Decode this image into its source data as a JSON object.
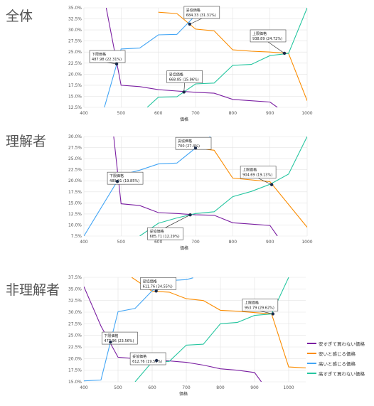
{
  "colors": {
    "too_cheap_doubt": "#7B1FA2",
    "cheap": "#FB8C00",
    "expensive": "#42A5F5",
    "too_expensive": "#26C6A0"
  },
  "legend": [
    {
      "label": "安すぎて買わない価格",
      "color": "#7B1FA2"
    },
    {
      "label": "安いと感じる価格",
      "color": "#FB8C00"
    },
    {
      "label": "高いと感じる価格",
      "color": "#42A5F5"
    },
    {
      "label": "高すぎて買わない価格",
      "color": "#26C6A0"
    }
  ],
  "chart_data": [
    {
      "type": "line",
      "panel_label": "全体",
      "xlabel": "価格",
      "xlim": [
        400,
        1000
      ],
      "ylim": [
        12.5,
        35.0
      ],
      "xticks": [
        400,
        500,
        600,
        700,
        800,
        900,
        1000
      ],
      "xtick_labels": [
        "400",
        "500",
        "600",
        "700",
        "800",
        "900",
        "1000"
      ],
      "yticks": [
        12.5,
        15.0,
        17.5,
        20.0,
        22.5,
        25.0,
        27.5,
        30.0,
        32.5,
        35.0
      ],
      "ytick_labels": [
        "12.5%",
        "15.0%",
        "17.5%",
        "20.0%",
        "22.5%",
        "25.0%",
        "27.5%",
        "30.0%",
        "32.5%",
        "35.0%"
      ],
      "series": [
        {
          "key": "too_cheap_doubt",
          "x": [
            460,
            500,
            550,
            600,
            650,
            700,
            750,
            800,
            850,
            900,
            920
          ],
          "y": [
            35.0,
            17.5,
            17.2,
            16.5,
            16.2,
            15.9,
            15.7,
            14.3,
            14.0,
            13.7,
            12.5
          ]
        },
        {
          "key": "cheap",
          "x": [
            600,
            650,
            700,
            750,
            800,
            850,
            900,
            950,
            1000
          ],
          "y": [
            34.0,
            33.7,
            30.2,
            29.8,
            25.5,
            25.2,
            25.0,
            24.7,
            14.0
          ]
        },
        {
          "key": "expensive",
          "x": [
            455,
            500,
            550,
            600,
            650,
            700,
            750
          ],
          "y": [
            12.5,
            25.7,
            25.9,
            28.9,
            29.0,
            33.3,
            35.0
          ]
        },
        {
          "key": "too_expensive",
          "x": [
            570,
            600,
            650,
            700,
            750,
            800,
            850,
            900,
            950,
            1000
          ],
          "y": [
            12.5,
            14.8,
            14.9,
            17.8,
            18.0,
            22.0,
            22.2,
            24.2,
            24.7,
            35.0
          ]
        }
      ],
      "points": [
        {
          "name": "下限価格",
          "value": "487.98 (22.31%)",
          "x": 487.98,
          "y": 22.31
        },
        {
          "name": "妥協価格",
          "value": "668.85 (15.96%)",
          "x": 668.85,
          "y": 15.96
        },
        {
          "name": "妥協価格",
          "value": "684.33 (31.31%)",
          "x": 684.33,
          "y": 31.31
        },
        {
          "name": "上限価格",
          "value": "938.89 (24.72%)",
          "x": 938.89,
          "y": 24.72
        }
      ]
    },
    {
      "type": "line",
      "panel_label": "理解者",
      "xlabel": "価格",
      "xlim": [
        400,
        1000
      ],
      "ylim": [
        7.5,
        30.0
      ],
      "xticks": [
        400,
        500,
        600,
        700,
        800,
        900,
        1000
      ],
      "xtick_labels": [
        "400",
        "500",
        "600",
        "700",
        "800",
        "900",
        "1000"
      ],
      "yticks": [
        7.5,
        10.0,
        12.5,
        15.0,
        17.5,
        20.0,
        22.5,
        25.0,
        27.5,
        30.0
      ],
      "ytick_labels": [
        "7.5%",
        "10.0%",
        "12.5%",
        "15.0%",
        "17.5%",
        "20.0%",
        "22.5%",
        "25.0%",
        "27.5%",
        "30.0%"
      ],
      "series": [
        {
          "key": "too_cheap_doubt",
          "x": [
            480,
            500,
            550,
            600,
            650,
            700,
            750,
            800,
            850,
            900,
            920
          ],
          "y": [
            30.0,
            14.8,
            14.4,
            12.8,
            12.6,
            12.3,
            12.2,
            10.5,
            10.2,
            9.9,
            7.5
          ]
        },
        {
          "key": "cheap",
          "x": [
            650,
            700,
            750,
            800,
            850,
            900,
            1000
          ],
          "y": [
            29.0,
            27.4,
            26.9,
            20.6,
            20.2,
            19.8,
            9.5
          ]
        },
        {
          "key": "expensive",
          "x": [
            400,
            500,
            550,
            600,
            650,
            700,
            740
          ],
          "y": [
            7.5,
            21.3,
            22.4,
            23.8,
            24.0,
            27.4,
            30.0
          ]
        },
        {
          "key": "too_expensive",
          "x": [
            550,
            600,
            650,
            700,
            750,
            800,
            850,
            900,
            950,
            1000
          ],
          "y": [
            7.5,
            10.4,
            11.6,
            12.6,
            13.0,
            16.4,
            17.6,
            19.2,
            21.5,
            30.0
          ]
        }
      ],
      "points": [
        {
          "name": "下限価格",
          "value": "489.91 (19.85%)",
          "x": 489.91,
          "y": 19.85
        },
        {
          "name": "妥協価格",
          "value": "685.71 (12.29%)",
          "x": 685.71,
          "y": 12.29
        },
        {
          "name": "妥協価格",
          "value": "700 (27.4%)",
          "x": 700,
          "y": 27.4
        },
        {
          "name": "上限価格",
          "value": "904.69 (19.13%)",
          "x": 904.69,
          "y": 19.13
        }
      ]
    },
    {
      "type": "line",
      "panel_label": "非理解者",
      "xlabel": "価格",
      "xlim": [
        400,
        1050
      ],
      "ylim": [
        15.0,
        37.5
      ],
      "xticks": [
        400,
        500,
        600,
        700,
        800,
        900,
        1000
      ],
      "xtick_labels": [
        "400",
        "500",
        "600",
        "700",
        "800",
        "900",
        "1000"
      ],
      "yticks": [
        15.0,
        17.5,
        20.0,
        22.5,
        25.0,
        27.5,
        30.0,
        32.5,
        35.0,
        37.5
      ],
      "ytick_labels": [
        "15.0%",
        "17.5%",
        "20.0%",
        "22.5%",
        "25.0%",
        "27.5%",
        "30.0%",
        "32.5%",
        "35.0%",
        "37.5%"
      ],
      "series": [
        {
          "key": "too_cheap_doubt",
          "x": [
            400,
            450,
            500,
            550,
            600,
            650,
            700,
            750,
            800,
            850,
            900,
            920
          ],
          "y": [
            35.5,
            27.0,
            20.3,
            20.0,
            19.8,
            19.5,
            19.2,
            18.6,
            17.8,
            17.5,
            17.0,
            15.0
          ]
        },
        {
          "key": "cheap",
          "x": [
            540,
            600,
            650,
            700,
            750,
            800,
            850,
            950,
            1000,
            1050
          ],
          "y": [
            37.5,
            34.5,
            34.3,
            32.9,
            32.5,
            30.4,
            30.2,
            29.6,
            18.2,
            18.0
          ]
        },
        {
          "key": "expensive",
          "x": [
            400,
            450,
            500,
            550,
            600,
            650,
            700,
            720
          ],
          "y": [
            15.2,
            15.4,
            30.1,
            30.8,
            34.6,
            36.8,
            37.0,
            37.4
          ]
        },
        {
          "key": "too_expensive",
          "x": [
            550,
            600,
            650,
            700,
            750,
            800,
            850,
            900,
            950,
            1000
          ],
          "y": [
            15.0,
            19.3,
            19.4,
            22.9,
            23.1,
            27.5,
            27.8,
            29.3,
            29.6,
            37.5
          ]
        }
      ],
      "points": [
        {
          "name": "下限価格",
          "value": "477.96 (23.56%)",
          "x": 477.96,
          "y": 23.56
        },
        {
          "name": "妥協価格",
          "value": "612.76 (19.59%)",
          "x": 612.76,
          "y": 19.59
        },
        {
          "name": "妥協価格",
          "value": "611.76 (34.55%)",
          "x": 611.76,
          "y": 34.55
        },
        {
          "name": "上限価格",
          "value": "953.79 (29.62%)",
          "x": 953.79,
          "y": 29.62
        }
      ]
    }
  ]
}
